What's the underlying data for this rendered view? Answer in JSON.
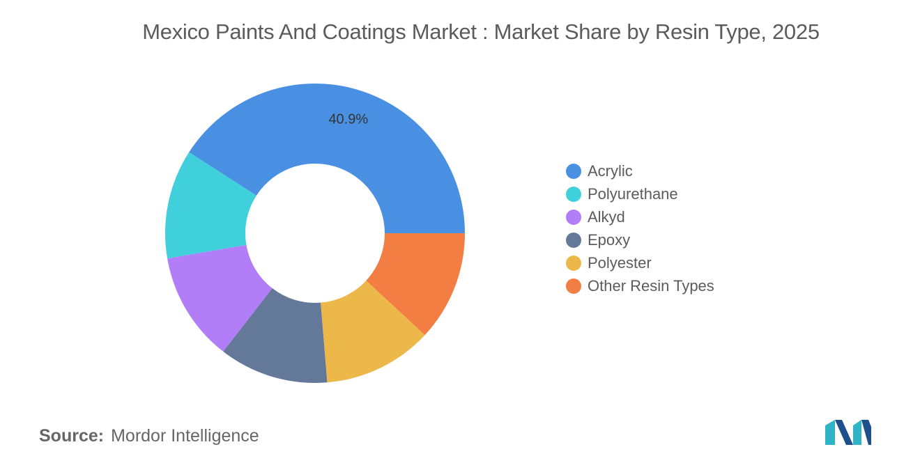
{
  "chart_data": {
    "type": "pie",
    "variant": "donut",
    "title": "Mexico Paints And Coatings Market : Market Share by Resin Type, 2025",
    "categories": [
      "Acrylic",
      "Polyurethane",
      "Alkyd",
      "Epoxy",
      "Polyester",
      "Other Resin Types"
    ],
    "values": [
      40.9,
      11.8,
      11.8,
      11.8,
      11.8,
      11.9
    ],
    "data_labels": [
      "40.9%",
      "",
      "",
      "",
      "",
      ""
    ],
    "colors": [
      "#4a90e2",
      "#3fd0db",
      "#b17ef7",
      "#647899",
      "#ecb84a",
      "#f27e43"
    ],
    "legend_position": "right"
  },
  "source": {
    "label": "Source:",
    "value": "Mordor Intelligence"
  },
  "logo": {
    "icon": "mordor-intelligence-logo"
  }
}
